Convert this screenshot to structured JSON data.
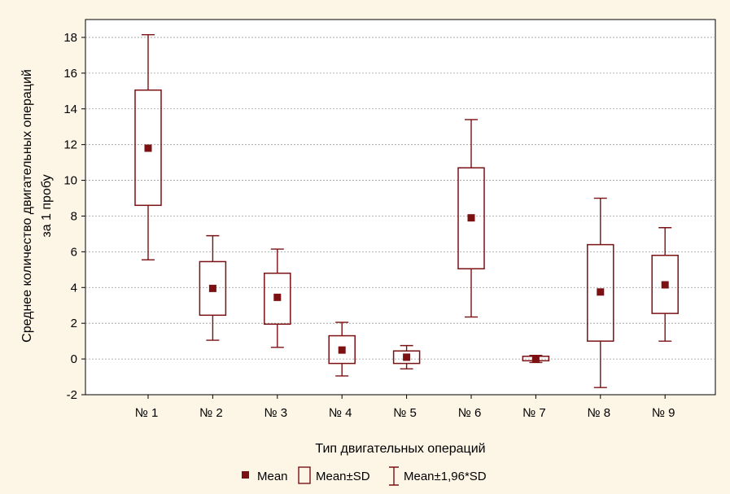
{
  "chart_data": {
    "type": "box",
    "xlabel": "Тип двигательных операций",
    "ylabel_line1": "Среднее количество двигательных операций",
    "ylabel_line2": "за 1   пробу",
    "ylim": [
      -2,
      19
    ],
    "yticks": [
      -2,
      0,
      2,
      4,
      6,
      8,
      10,
      12,
      14,
      16,
      18
    ],
    "grid": true,
    "legend_placement": "bottom",
    "categories": [
      "№ 1",
      "№ 2",
      "№ 3",
      "№ 4",
      "№ 5",
      "№ 6",
      "№ 7",
      "№ 8",
      "№ 9"
    ],
    "series": [
      {
        "name": "Mean",
        "values": [
          11.8,
          3.95,
          3.45,
          0.5,
          0.1,
          7.9,
          0.0,
          3.75,
          4.15
        ]
      },
      {
        "name": "Mean±SD",
        "lower": [
          8.6,
          2.45,
          1.95,
          -0.25,
          -0.25,
          5.05,
          -0.1,
          1.0,
          2.55
        ],
        "upper": [
          15.05,
          5.45,
          4.8,
          1.3,
          0.45,
          10.7,
          0.15,
          6.4,
          5.8
        ]
      },
      {
        "name": "Mean±1,96*SD",
        "lower": [
          5.55,
          1.05,
          0.65,
          -0.95,
          -0.55,
          2.35,
          -0.2,
          -1.6,
          1.0
        ],
        "upper": [
          18.15,
          6.9,
          6.15,
          2.05,
          0.75,
          13.4,
          0.2,
          9.0,
          7.35
        ]
      }
    ],
    "colors": {
      "box": "#7b1113",
      "grid": "#9a9a9a",
      "background": "#fdf5e6",
      "plot_background": "#ffffff"
    }
  }
}
